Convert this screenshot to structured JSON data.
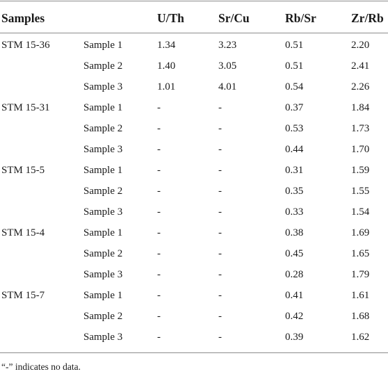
{
  "table": {
    "headers": {
      "samples": "Samples",
      "u_th": "U/Th",
      "sr_cu": "Sr/Cu",
      "rb_sr": "Rb/Sr",
      "zr_rb": "Zr/Rb"
    },
    "rows": [
      {
        "group": "STM 15-36",
        "sample": "Sample 1",
        "u_th": "1.34",
        "sr_cu": "3.23",
        "rb_sr": "0.51",
        "zr_rb": "2.20"
      },
      {
        "group": "",
        "sample": "Sample 2",
        "u_th": "1.40",
        "sr_cu": "3.05",
        "rb_sr": "0.51",
        "zr_rb": "2.41"
      },
      {
        "group": "",
        "sample": "Sample 3",
        "u_th": "1.01",
        "sr_cu": "4.01",
        "rb_sr": "0.54",
        "zr_rb": "2.26"
      },
      {
        "group": "STM 15-31",
        "sample": "Sample 1",
        "u_th": "-",
        "sr_cu": "-",
        "rb_sr": "0.37",
        "zr_rb": "1.84"
      },
      {
        "group": "",
        "sample": "Sample 2",
        "u_th": "-",
        "sr_cu": "-",
        "rb_sr": "0.53",
        "zr_rb": "1.73"
      },
      {
        "group": "",
        "sample": "Sample 3",
        "u_th": "-",
        "sr_cu": "-",
        "rb_sr": "0.44",
        "zr_rb": "1.70"
      },
      {
        "group": "STM 15-5",
        "sample": "Sample 1",
        "u_th": "-",
        "sr_cu": "-",
        "rb_sr": "0.31",
        "zr_rb": "1.59"
      },
      {
        "group": "",
        "sample": "Sample 2",
        "u_th": "-",
        "sr_cu": "-",
        "rb_sr": "0.35",
        "zr_rb": "1.55"
      },
      {
        "group": "",
        "sample": "Sample 3",
        "u_th": "-",
        "sr_cu": "-",
        "rb_sr": "0.33",
        "zr_rb": "1.54"
      },
      {
        "group": "STM 15-4",
        "sample": "Sample 1",
        "u_th": "-",
        "sr_cu": "-",
        "rb_sr": "0.38",
        "zr_rb": "1.69"
      },
      {
        "group": "",
        "sample": "Sample 2",
        "u_th": "-",
        "sr_cu": "-",
        "rb_sr": "0.45",
        "zr_rb": "1.65"
      },
      {
        "group": "",
        "sample": "Sample 3",
        "u_th": "-",
        "sr_cu": "-",
        "rb_sr": "0.28",
        "zr_rb": "1.79"
      },
      {
        "group": "STM 15-7",
        "sample": "Sample 1",
        "u_th": "-",
        "sr_cu": "-",
        "rb_sr": "0.41",
        "zr_rb": "1.61"
      },
      {
        "group": "",
        "sample": "Sample 2",
        "u_th": "-",
        "sr_cu": "-",
        "rb_sr": "0.42",
        "zr_rb": "1.68"
      },
      {
        "group": "",
        "sample": "Sample 3",
        "u_th": "-",
        "sr_cu": "-",
        "rb_sr": "0.39",
        "zr_rb": "1.62"
      }
    ],
    "footnote": "“-” indicates no data."
  }
}
